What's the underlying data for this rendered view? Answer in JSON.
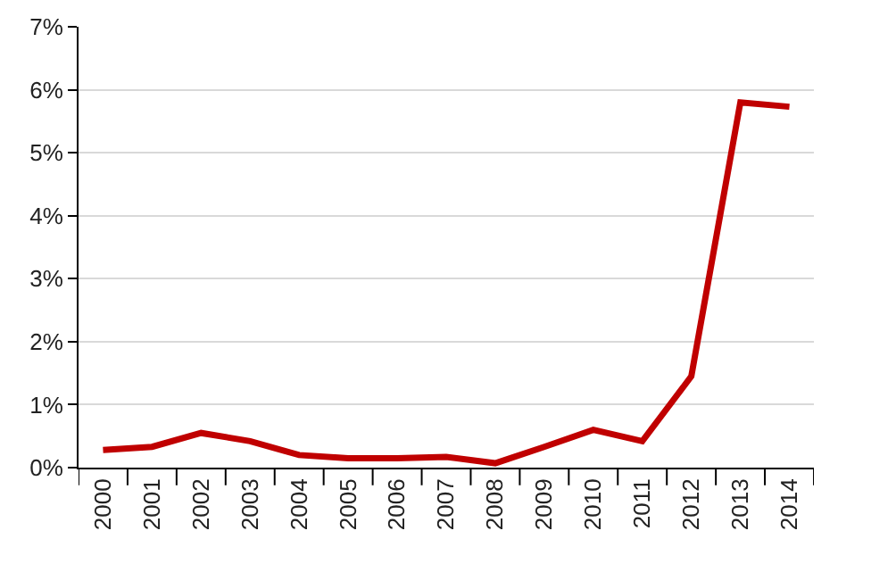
{
  "chart_data": {
    "type": "line",
    "categories": [
      "2000",
      "2001",
      "2002",
      "2003",
      "2004",
      "2005",
      "2006",
      "2007",
      "2008",
      "2009",
      "2010",
      "2011",
      "2012",
      "2013",
      "2014"
    ],
    "series": [
      {
        "color": "#c00000",
        "values": [
          0.28,
          0.33,
          0.55,
          0.42,
          0.2,
          0.15,
          0.15,
          0.17,
          0.07,
          0.33,
          0.6,
          0.42,
          1.45,
          5.8,
          5.73
        ]
      }
    ],
    "ylim": [
      0,
      7
    ],
    "yticks": [
      {
        "value": 0,
        "label": "0%"
      },
      {
        "value": 1,
        "label": "1%"
      },
      {
        "value": 2,
        "label": "2%"
      },
      {
        "value": 3,
        "label": "3%"
      },
      {
        "value": 4,
        "label": "4%"
      },
      {
        "value": 5,
        "label": "5%"
      },
      {
        "value": 6,
        "label": "6%"
      },
      {
        "value": 7,
        "label": "7%"
      }
    ],
    "grid": "y",
    "marker": "none",
    "line_style": "solid"
  }
}
